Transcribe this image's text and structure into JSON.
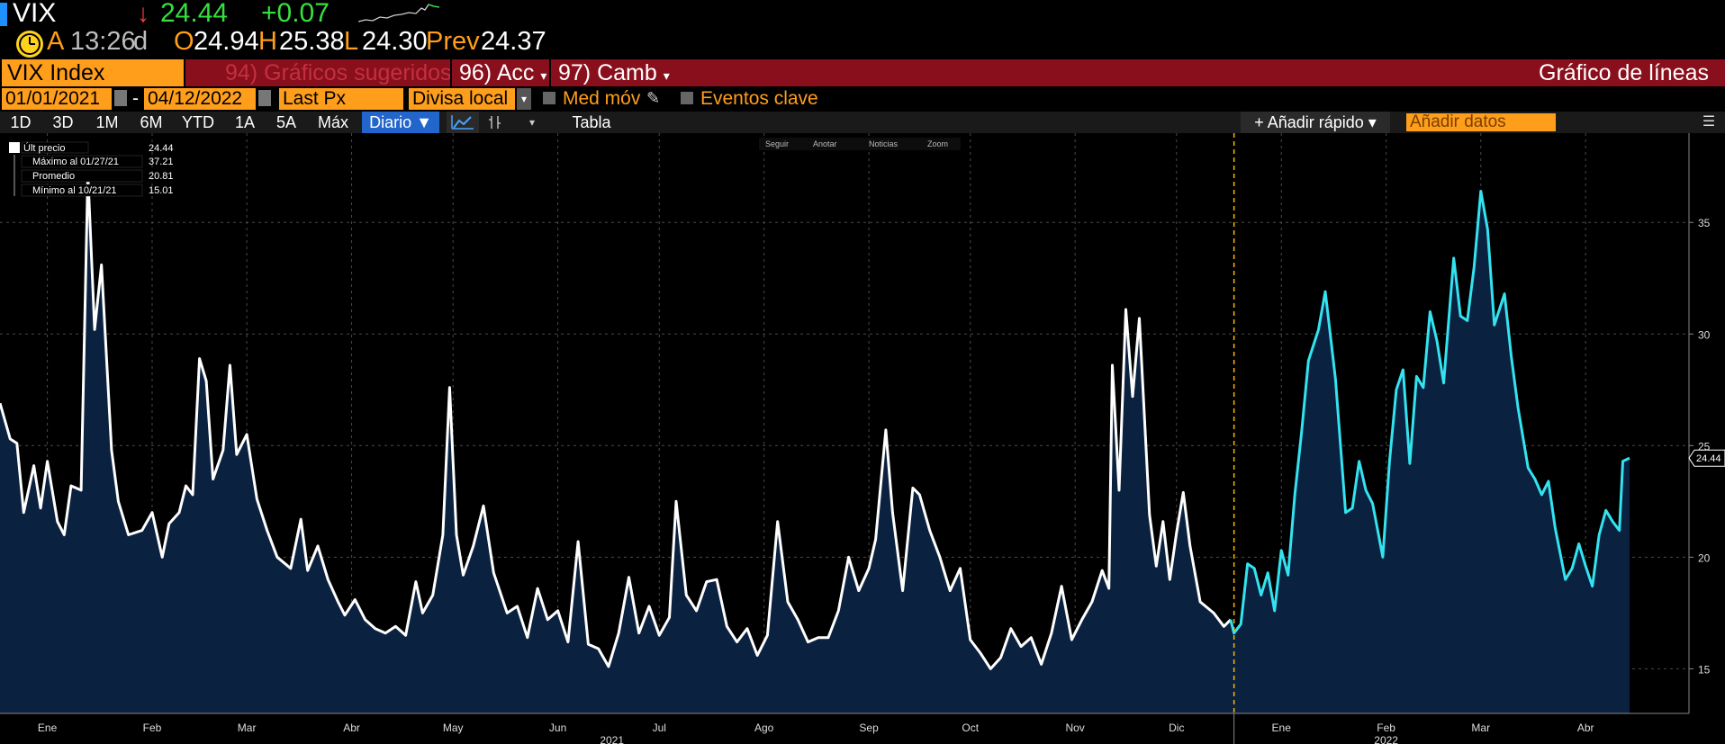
{
  "header": {
    "ticker": "VIX",
    "last_price": "24.44",
    "change": "+0.07",
    "row2": {
      "source": "A",
      "time": "13:26",
      "source2": "d",
      "open_label": "O",
      "open": "24.94",
      "high_label": "H",
      "high": "25.38",
      "low_label": "L",
      "low": "24.30",
      "prev_label": "Prev",
      "prev": "24.37"
    }
  },
  "menu": {
    "security": "VIX Index",
    "suggested": "94) Gráficos sugeridos",
    "actions": "96) Acc",
    "change_menu": "97) Camb",
    "chart_type": "Gráfico de líneas"
  },
  "controls": {
    "start_date": "01/01/2021",
    "end_date": "04/12/2022",
    "dash": "-",
    "field": "Last Px",
    "currency": "Divisa local",
    "moving_avg": "Med móv",
    "key_events": "Eventos clave",
    "periods": [
      "1D",
      "3D",
      "1M",
      "6M",
      "YTD",
      "1A",
      "5A",
      "Máx"
    ],
    "frequency": "Diario ▼",
    "table": "Tabla",
    "add_fast": "+ Añadir rápido ▾",
    "add_data_placeholder": "Añadir datos"
  },
  "mini_toolbar": [
    "Seguir",
    "Anotar",
    "Noticias",
    "Zoom"
  ],
  "legend": [
    {
      "label": "Últ precio",
      "value": "24.44"
    },
    {
      "label": "Máximo al 01/27/21",
      "value": "37.21"
    },
    {
      "label": "Promedio",
      "value": "20.81"
    },
    {
      "label": "Mínimo al 10/21/21",
      "value": "15.01"
    }
  ],
  "colors": {
    "accent_orange": "#ff9e1b",
    "menu_red": "#8a0f1c",
    "line_2021": "#ffffff",
    "line_2022": "#33e3f0",
    "area_fill": "#0b2140",
    "year_divider": "#ffb400"
  },
  "chart_data": {
    "type": "area",
    "title": "",
    "xlabel": "",
    "ylabel": "",
    "ylim": [
      13,
      39
    ],
    "yticks": [
      15,
      20,
      25,
      30,
      35
    ],
    "xlim": [
      "2021-01-01",
      "2022-04-12"
    ],
    "month_ticks": [
      {
        "label": "Ene",
        "date": "2021-01-15"
      },
      {
        "label": "Feb",
        "date": "2021-02-15"
      },
      {
        "label": "Mar",
        "date": "2021-03-15"
      },
      {
        "label": "Abr",
        "date": "2021-04-15"
      },
      {
        "label": "May",
        "date": "2021-05-15"
      },
      {
        "label": "Jun",
        "date": "2021-06-15"
      },
      {
        "label": "Jul",
        "date": "2021-07-15"
      },
      {
        "label": "Ago",
        "date": "2021-08-15"
      },
      {
        "label": "Sep",
        "date": "2021-09-15"
      },
      {
        "label": "Oct",
        "date": "2021-10-15"
      },
      {
        "label": "Nov",
        "date": "2021-11-15"
      },
      {
        "label": "Dic",
        "date": "2021-12-15"
      },
      {
        "label": "Ene",
        "date": "2022-01-15"
      },
      {
        "label": "Feb",
        "date": "2022-02-15"
      },
      {
        "label": "Mar",
        "date": "2022-03-15"
      },
      {
        "label": "Abr",
        "date": "2022-04-15"
      }
    ],
    "year_labels": [
      {
        "label": "2021",
        "date": "2021-07-01"
      },
      {
        "label": "2022",
        "date": "2022-02-15"
      }
    ],
    "year_divider_date": "2022-01-01",
    "last_value_label": "24.44",
    "series": [
      {
        "name": "2021",
        "points": [
          [
            "2021-01-01",
            26.9
          ],
          [
            "2021-01-04",
            25.3
          ],
          [
            "2021-01-06",
            25.1
          ],
          [
            "2021-01-08",
            22.0
          ],
          [
            "2021-01-11",
            24.1
          ],
          [
            "2021-01-13",
            22.2
          ],
          [
            "2021-01-15",
            24.3
          ],
          [
            "2021-01-18",
            21.6
          ],
          [
            "2021-01-20",
            21.0
          ],
          [
            "2021-01-22",
            23.2
          ],
          [
            "2021-01-25",
            23.0
          ],
          [
            "2021-01-27",
            37.2
          ],
          [
            "2021-01-29",
            30.2
          ],
          [
            "2021-01-31",
            33.1
          ],
          [
            "2021-02-03",
            24.8
          ],
          [
            "2021-02-05",
            22.5
          ],
          [
            "2021-02-08",
            21.0
          ],
          [
            "2021-02-12",
            21.2
          ],
          [
            "2021-02-15",
            22.0
          ],
          [
            "2021-02-18",
            20.0
          ],
          [
            "2021-02-20",
            21.5
          ],
          [
            "2021-02-23",
            22.0
          ],
          [
            "2021-02-25",
            23.2
          ],
          [
            "2021-02-27",
            22.8
          ],
          [
            "2021-03-01",
            28.9
          ],
          [
            "2021-03-03",
            27.9
          ],
          [
            "2021-03-05",
            23.5
          ],
          [
            "2021-03-08",
            24.8
          ],
          [
            "2021-03-10",
            28.6
          ],
          [
            "2021-03-12",
            24.6
          ],
          [
            "2021-03-15",
            25.5
          ],
          [
            "2021-03-18",
            22.6
          ],
          [
            "2021-03-21",
            21.2
          ],
          [
            "2021-03-24",
            20.0
          ],
          [
            "2021-03-28",
            19.5
          ],
          [
            "2021-03-31",
            21.7
          ],
          [
            "2021-04-02",
            19.4
          ],
          [
            "2021-04-05",
            20.5
          ],
          [
            "2021-04-08",
            19.0
          ],
          [
            "2021-04-11",
            18.0
          ],
          [
            "2021-04-13",
            17.4
          ],
          [
            "2021-04-16",
            18.1
          ],
          [
            "2021-04-19",
            17.2
          ],
          [
            "2021-04-22",
            16.8
          ],
          [
            "2021-04-25",
            16.6
          ],
          [
            "2021-04-28",
            16.9
          ],
          [
            "2021-05-01",
            16.5
          ],
          [
            "2021-05-04",
            18.9
          ],
          [
            "2021-05-06",
            17.5
          ],
          [
            "2021-05-09",
            18.3
          ],
          [
            "2021-05-12",
            21.0
          ],
          [
            "2021-05-14",
            27.6
          ],
          [
            "2021-05-16",
            21.0
          ],
          [
            "2021-05-18",
            19.2
          ],
          [
            "2021-05-21",
            20.5
          ],
          [
            "2021-05-24",
            22.3
          ],
          [
            "2021-05-27",
            19.3
          ],
          [
            "2021-05-31",
            17.5
          ],
          [
            "2021-06-03",
            17.8
          ],
          [
            "2021-06-06",
            16.4
          ],
          [
            "2021-06-09",
            18.6
          ],
          [
            "2021-06-12",
            17.2
          ],
          [
            "2021-06-15",
            17.6
          ],
          [
            "2021-06-18",
            16.2
          ],
          [
            "2021-06-21",
            20.7
          ],
          [
            "2021-06-24",
            16.1
          ],
          [
            "2021-06-27",
            15.9
          ],
          [
            "2021-06-30",
            15.1
          ],
          [
            "2021-07-03",
            16.6
          ],
          [
            "2021-07-06",
            19.1
          ],
          [
            "2021-07-09",
            16.6
          ],
          [
            "2021-07-12",
            17.8
          ],
          [
            "2021-07-15",
            16.5
          ],
          [
            "2021-07-18",
            17.3
          ],
          [
            "2021-07-20",
            22.5
          ],
          [
            "2021-07-23",
            18.3
          ],
          [
            "2021-07-26",
            17.6
          ],
          [
            "2021-07-29",
            18.9
          ],
          [
            "2021-08-01",
            19.0
          ],
          [
            "2021-08-04",
            16.9
          ],
          [
            "2021-08-07",
            16.2
          ],
          [
            "2021-08-10",
            16.8
          ],
          [
            "2021-08-13",
            15.6
          ],
          [
            "2021-08-16",
            16.5
          ],
          [
            "2021-08-19",
            21.6
          ],
          [
            "2021-08-22",
            18.0
          ],
          [
            "2021-08-25",
            17.2
          ],
          [
            "2021-08-28",
            16.2
          ],
          [
            "2021-08-31",
            16.4
          ],
          [
            "2021-09-03",
            16.4
          ],
          [
            "2021-09-06",
            17.6
          ],
          [
            "2021-09-09",
            20.0
          ],
          [
            "2021-09-12",
            18.5
          ],
          [
            "2021-09-15",
            19.5
          ],
          [
            "2021-09-17",
            20.8
          ],
          [
            "2021-09-20",
            25.7
          ],
          [
            "2021-09-22",
            22.0
          ],
          [
            "2021-09-25",
            18.5
          ],
          [
            "2021-09-28",
            23.1
          ],
          [
            "2021-09-30",
            22.8
          ],
          [
            "2021-10-03",
            21.2
          ],
          [
            "2021-10-06",
            20.0
          ],
          [
            "2021-10-09",
            18.5
          ],
          [
            "2021-10-12",
            19.5
          ],
          [
            "2021-10-15",
            16.3
          ],
          [
            "2021-10-18",
            15.7
          ],
          [
            "2021-10-21",
            15.0
          ],
          [
            "2021-10-24",
            15.5
          ],
          [
            "2021-10-27",
            16.8
          ],
          [
            "2021-10-30",
            16.0
          ],
          [
            "2021-11-02",
            16.4
          ],
          [
            "2021-11-05",
            15.2
          ],
          [
            "2021-11-08",
            16.6
          ],
          [
            "2021-11-11",
            18.7
          ],
          [
            "2021-11-14",
            16.3
          ],
          [
            "2021-11-17",
            17.2
          ],
          [
            "2021-11-20",
            18.0
          ],
          [
            "2021-11-23",
            19.4
          ],
          [
            "2021-11-25",
            18.6
          ],
          [
            "2021-11-26",
            28.6
          ],
          [
            "2021-11-28",
            23.0
          ],
          [
            "2021-11-30",
            31.1
          ],
          [
            "2021-12-02",
            27.2
          ],
          [
            "2021-12-04",
            30.7
          ],
          [
            "2021-12-07",
            21.9
          ],
          [
            "2021-12-09",
            19.6
          ],
          [
            "2021-12-11",
            21.6
          ],
          [
            "2021-12-13",
            19.0
          ],
          [
            "2021-12-15",
            21.1
          ],
          [
            "2021-12-17",
            22.9
          ],
          [
            "2021-12-19",
            20.5
          ],
          [
            "2021-12-22",
            18.0
          ],
          [
            "2021-12-26",
            17.5
          ],
          [
            "2021-12-29",
            16.9
          ],
          [
            "2021-12-31",
            17.2
          ]
        ]
      },
      {
        "name": "2022",
        "points": [
          [
            "2022-01-01",
            16.6
          ],
          [
            "2022-01-03",
            17.0
          ],
          [
            "2022-01-05",
            19.7
          ],
          [
            "2022-01-07",
            19.5
          ],
          [
            "2022-01-09",
            18.3
          ],
          [
            "2022-01-11",
            19.3
          ],
          [
            "2022-01-13",
            17.6
          ],
          [
            "2022-01-15",
            20.3
          ],
          [
            "2022-01-17",
            19.2
          ],
          [
            "2022-01-19",
            22.8
          ],
          [
            "2022-01-21",
            25.6
          ],
          [
            "2022-01-23",
            28.8
          ],
          [
            "2022-01-26",
            30.2
          ],
          [
            "2022-01-28",
            31.9
          ],
          [
            "2022-01-31",
            28.0
          ],
          [
            "2022-02-03",
            22.0
          ],
          [
            "2022-02-05",
            22.2
          ],
          [
            "2022-02-07",
            24.3
          ],
          [
            "2022-02-09",
            23.0
          ],
          [
            "2022-02-11",
            22.4
          ],
          [
            "2022-02-14",
            20.0
          ],
          [
            "2022-02-16",
            24.3
          ],
          [
            "2022-02-18",
            27.5
          ],
          [
            "2022-02-20",
            28.4
          ],
          [
            "2022-02-22",
            24.2
          ],
          [
            "2022-02-24",
            28.1
          ],
          [
            "2022-02-26",
            27.6
          ],
          [
            "2022-02-28",
            31.0
          ],
          [
            "2022-03-02",
            29.7
          ],
          [
            "2022-03-04",
            27.8
          ],
          [
            "2022-03-07",
            33.4
          ],
          [
            "2022-03-09",
            30.8
          ],
          [
            "2022-03-11",
            30.6
          ],
          [
            "2022-03-13",
            33.0
          ],
          [
            "2022-03-15",
            36.4
          ],
          [
            "2022-03-17",
            34.7
          ],
          [
            "2022-03-19",
            30.4
          ],
          [
            "2022-03-22",
            31.8
          ],
          [
            "2022-03-24",
            29.0
          ],
          [
            "2022-03-26",
            26.7
          ],
          [
            "2022-03-29",
            24.0
          ],
          [
            "2022-03-31",
            23.5
          ],
          [
            "2022-04-02",
            22.8
          ],
          [
            "2022-04-04",
            23.4
          ],
          [
            "2022-04-06",
            21.3
          ],
          [
            "2022-04-09",
            19.0
          ],
          [
            "2022-04-11",
            19.5
          ],
          [
            "2022-04-13",
            20.6
          ],
          [
            "2022-04-15",
            19.6
          ],
          [
            "2022-04-17",
            18.7
          ],
          [
            "2022-04-19",
            21.0
          ],
          [
            "2022-04-21",
            22.1
          ],
          [
            "2022-04-23",
            21.6
          ],
          [
            "2022-04-25",
            21.2
          ],
          [
            "2022-04-26",
            24.3
          ],
          [
            "2022-04-28",
            24.44
          ]
        ]
      }
    ]
  }
}
